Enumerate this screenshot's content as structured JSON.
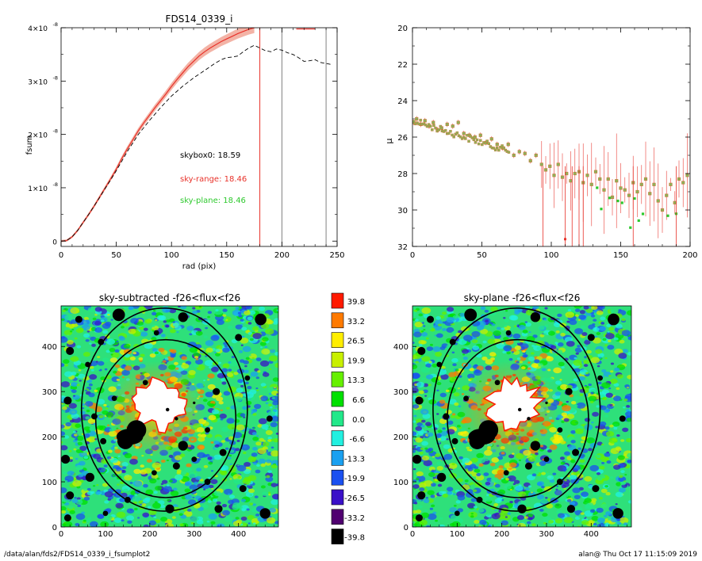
{
  "footer": {
    "path": "/data/alan/fds2/FDS14_0339_i_fsumplot2",
    "stamp": "alan@  Thu Oct 17 11:15:09 2019"
  },
  "colors": {
    "sky_range": "#e8322a",
    "sky_plane": "#2ec92e",
    "skybox": "#000000",
    "band_fill": "#f0a090",
    "marker_fill": "#8bb25a",
    "marker_edge": "#c97a3a"
  },
  "chart_data": [
    {
      "id": "fsum",
      "type": "line",
      "title": "FDS14_0339_i",
      "xlabel": "rad (pix)",
      "ylabel": "fsum",
      "xlim": [
        0,
        250
      ],
      "ylim": [
        -1e-09,
        4e-08
      ],
      "xticks": [
        "0",
        "50",
        "100",
        "150",
        "200",
        "250"
      ],
      "yticks": [
        {
          "value": 0,
          "mant": "0",
          "exp": ""
        },
        {
          "value": 1e-08,
          "mant": "1×10",
          "exp": "-8"
        },
        {
          "value": 2e-08,
          "mant": "2×10",
          "exp": "-8"
        },
        {
          "value": 3e-08,
          "mant": "3×10",
          "exp": "-8"
        },
        {
          "value": 4e-08,
          "mant": "4×10",
          "exp": "-8"
        }
      ],
      "vlines": [
        {
          "x": 180,
          "color": "#e8322a"
        },
        {
          "x": 200,
          "color": "#808080"
        },
        {
          "x": 240,
          "color": "#808080"
        }
      ],
      "series": [
        {
          "name": "sky-range",
          "style": "solid",
          "x": [
            0,
            5,
            10,
            15,
            20,
            25,
            30,
            35,
            40,
            45,
            50,
            55,
            60,
            65,
            70,
            75,
            80,
            85,
            90,
            95,
            100,
            105,
            110,
            115,
            120,
            125,
            130,
            135,
            140,
            145,
            150,
            155,
            160,
            165,
            170,
            175
          ],
          "y": [
            0.0,
            1e-10,
            8e-10,
            2e-09,
            3.5e-09,
            5e-09,
            6.6e-09,
            8.3e-09,
            1e-08,
            1.17e-08,
            1.35e-08,
            1.55e-08,
            1.73e-08,
            1.9e-08,
            2.07e-08,
            2.22e-08,
            2.36e-08,
            2.5e-08,
            2.63e-08,
            2.76e-08,
            2.9e-08,
            3.03e-08,
            3.15e-08,
            3.27e-08,
            3.37e-08,
            3.47e-08,
            3.55e-08,
            3.62e-08,
            3.68e-08,
            3.74e-08,
            3.79e-08,
            3.84e-08,
            3.89e-08,
            3.93e-08,
            3.97e-08,
            4e-08
          ]
        },
        {
          "name": "skybox0",
          "style": "dashed",
          "x": [
            0,
            5,
            10,
            15,
            20,
            25,
            30,
            35,
            40,
            45,
            50,
            55,
            60,
            65,
            70,
            75,
            80,
            85,
            90,
            95,
            100,
            105,
            110,
            115,
            120,
            125,
            130,
            135,
            140,
            145,
            150,
            155,
            160,
            165,
            170,
            175,
            180,
            185,
            190,
            195,
            200,
            205,
            210,
            215,
            220,
            225,
            230,
            235,
            240,
            245
          ],
          "y": [
            0.0,
            1e-10,
            8e-10,
            2e-09,
            3.5e-09,
            5e-09,
            6.6e-09,
            8.2e-09,
            9.9e-09,
            1.15e-08,
            1.32e-08,
            1.5e-08,
            1.68e-08,
            1.84e-08,
            2e-08,
            2.13e-08,
            2.26e-08,
            2.38e-08,
            2.5e-08,
            2.61e-08,
            2.72e-08,
            2.81e-08,
            2.9e-08,
            2.98e-08,
            3.06e-08,
            3.13e-08,
            3.2e-08,
            3.27e-08,
            3.34e-08,
            3.4e-08,
            3.44e-08,
            3.45e-08,
            3.47e-08,
            3.55e-08,
            3.62e-08,
            3.67e-08,
            3.62e-08,
            3.57e-08,
            3.55e-08,
            3.6e-08,
            3.58e-08,
            3.53e-08,
            3.5e-08,
            3.44e-08,
            3.37e-08,
            3.38e-08,
            3.4e-08,
            3.35e-08,
            3.33e-08,
            3.31e-08
          ]
        }
      ],
      "annotations": [
        {
          "text": "skybox0: 18.59",
          "color": "#000000"
        },
        {
          "text": "sky-range: 18.46",
          "color": "#e8322a"
        },
        {
          "text": "sky-plane: 18.46",
          "color": "#2ec92e"
        }
      ]
    },
    {
      "id": "mu",
      "type": "scatter",
      "title": "",
      "xlabel": "",
      "ylabel": "μ",
      "xlim": [
        0,
        200
      ],
      "ylim": [
        32,
        20
      ],
      "xticks": [
        "0",
        "50",
        "100",
        "150",
        "200"
      ],
      "yticks": [
        "20",
        "22",
        "24",
        "26",
        "28",
        "30",
        "32"
      ],
      "series": [
        {
          "name": "",
          "style": "points",
          "x": [
            1,
            3,
            6,
            9,
            12,
            15,
            18,
            21,
            25,
            29,
            33,
            37,
            41,
            45,
            49,
            53,
            57,
            61,
            65,
            69,
            73,
            77,
            81,
            85,
            89,
            93,
            96,
            99,
            102,
            105,
            108,
            111,
            114,
            117,
            120,
            123,
            126,
            129,
            132,
            135,
            138,
            141,
            144,
            147,
            150,
            153,
            156,
            159,
            162,
            165,
            168,
            171,
            174,
            177,
            180,
            183,
            186,
            189,
            192,
            195,
            198
          ],
          "y": [
            25.2,
            25.0,
            25.3,
            25.1,
            25.4,
            25.2,
            25.6,
            25.5,
            25.3,
            25.4,
            25.2,
            25.8,
            25.9,
            26.0,
            25.9,
            26.3,
            26.1,
            26.4,
            26.6,
            26.4,
            27.0,
            26.8,
            26.9,
            27.3,
            27.0,
            27.5,
            27.8,
            27.6,
            28.1,
            27.5,
            28.2,
            28.0,
            28.4,
            28.0,
            27.9,
            28.5,
            28.1,
            28.6,
            27.9,
            28.3,
            28.9,
            28.3,
            29.3,
            28.4,
            28.8,
            28.9,
            29.2,
            28.5,
            29.0,
            28.6,
            28.3,
            29.1,
            28.6,
            29.5,
            30.0,
            29.2,
            28.6,
            29.6,
            28.3,
            28.5,
            28.1
          ]
        }
      ]
    },
    {
      "id": "sky-subtracted",
      "type": "heatmap",
      "title": "sky-subtracted -f26<flux<f26",
      "xlim": [
        0,
        490
      ],
      "ylim": [
        0,
        490
      ],
      "xticks": [
        "0",
        "100",
        "200",
        "300",
        "400"
      ],
      "yticks": [
        "0",
        "100",
        "200",
        "300",
        "400"
      ]
    },
    {
      "id": "sky-plane",
      "type": "heatmap",
      "title": "sky-plane -f26<flux<f26",
      "xlim": [
        0,
        490
      ],
      "ylim": [
        0,
        490
      ],
      "xticks": [
        "0",
        "100",
        "200",
        "300",
        "400"
      ],
      "yticks": [
        "0",
        "100",
        "200",
        "300",
        "400"
      ]
    },
    {
      "id": "colorbar",
      "type": "table",
      "levels": [
        "39.8",
        "33.2",
        "26.5",
        "19.9",
        "13.3",
        "6.6",
        "0.0",
        "-6.6",
        "-13.3",
        "-19.9",
        "-26.5",
        "-33.2",
        "-39.8"
      ],
      "colors": [
        "#ff1a00",
        "#ff7a00",
        "#ffee00",
        "#c8f000",
        "#66f000",
        "#00e000",
        "#22e88a",
        "#22f0e0",
        "#1aa0f0",
        "#1a50f0",
        "#3a10c8",
        "#500070",
        "#000000"
      ]
    }
  ]
}
